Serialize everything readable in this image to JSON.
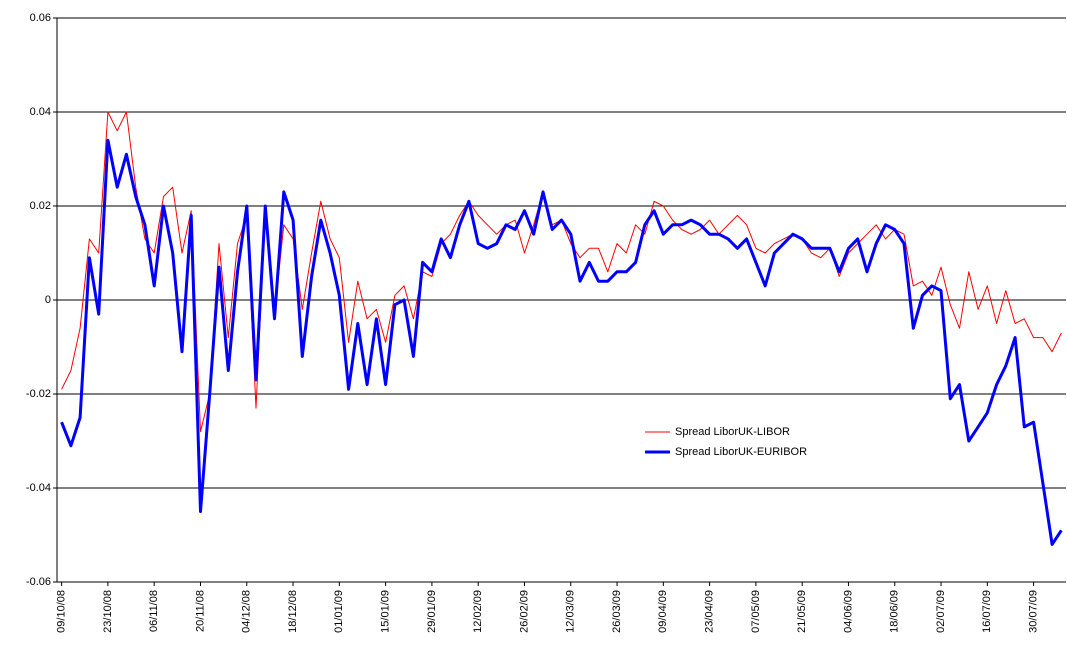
{
  "chart_data": {
    "type": "line",
    "categories": [
      "09/10/08",
      null,
      null,
      null,
      null,
      "23/10/08",
      null,
      null,
      null,
      null,
      "06/11/08",
      null,
      null,
      null,
      null,
      "20/11/08",
      null,
      null,
      null,
      null,
      "04/12/08",
      null,
      null,
      null,
      null,
      "18/12/08",
      null,
      null,
      null,
      null,
      "01/01/09",
      null,
      null,
      null,
      null,
      "15/01/09",
      null,
      null,
      null,
      null,
      "29/01/09",
      null,
      null,
      null,
      null,
      "12/02/09",
      null,
      null,
      null,
      null,
      "26/02/09",
      null,
      null,
      null,
      null,
      "12/03/09",
      null,
      null,
      null,
      null,
      "26/03/09",
      null,
      null,
      null,
      null,
      "09/04/09",
      null,
      null,
      null,
      null,
      "23/04/09",
      null,
      null,
      null,
      null,
      "07/05/09",
      null,
      null,
      null,
      null,
      "21/05/09",
      null,
      null,
      null,
      null,
      "04/06/09",
      null,
      null,
      null,
      null,
      "18/06/09",
      null,
      null,
      null,
      null,
      "02/07/09",
      null,
      null,
      null,
      null,
      "16/07/09",
      null,
      null,
      null,
      null,
      "30/07/09",
      null,
      null,
      null
    ],
    "series": [
      {
        "name": "Spread LiborUK-LIBOR",
        "color": "#ff0000",
        "values": [
          -0.019,
          -0.015,
          -0.006,
          0.013,
          0.01,
          0.04,
          0.036,
          0.04,
          0.024,
          0.013,
          0.01,
          0.022,
          0.024,
          0.01,
          0.019,
          -0.028,
          -0.02,
          0.012,
          -0.008,
          0.012,
          0.018,
          -0.023,
          0.019,
          -0.003,
          0.016,
          0.013,
          -0.002,
          0.01,
          0.021,
          0.013,
          0.009,
          -0.009,
          0.004,
          -0.004,
          -0.002,
          -0.009,
          0.001,
          0.003,
          -0.004,
          0.006,
          0.005,
          0.012,
          0.014,
          0.018,
          0.021,
          0.018,
          0.016,
          0.014,
          0.016,
          0.017,
          0.01,
          0.016,
          0.023,
          0.016,
          0.017,
          0.012,
          0.009,
          0.011,
          0.011,
          0.006,
          0.012,
          0.01,
          0.016,
          0.014,
          0.021,
          0.02,
          0.017,
          0.015,
          0.014,
          0.015,
          0.017,
          0.014,
          0.016,
          0.018,
          0.016,
          0.011,
          0.01,
          0.012,
          0.013,
          0.014,
          0.013,
          0.01,
          0.009,
          0.011,
          0.005,
          0.01,
          0.012,
          0.014,
          0.016,
          0.013,
          0.015,
          0.014,
          0.003,
          0.004,
          0.001,
          0.007,
          -0.001,
          -0.006,
          0.006,
          -0.002,
          0.003,
          -0.005,
          0.002,
          -0.005,
          -0.004,
          -0.008,
          -0.008,
          -0.011,
          -0.007
        ]
      },
      {
        "name": "Spread LiborUK-EURIBOR",
        "color": "#0000ff",
        "values": [
          -0.026,
          -0.031,
          -0.025,
          0.009,
          -0.003,
          0.034,
          0.024,
          0.031,
          0.022,
          0.016,
          0.003,
          0.02,
          0.01,
          -0.011,
          0.018,
          -0.045,
          -0.02,
          0.007,
          -0.015,
          0.006,
          0.02,
          -0.017,
          0.02,
          -0.004,
          0.023,
          0.017,
          -0.012,
          0.005,
          0.017,
          0.01,
          0.001,
          -0.019,
          -0.005,
          -0.018,
          -0.004,
          -0.018,
          -0.001,
          0.0,
          -0.012,
          0.008,
          0.006,
          0.013,
          0.009,
          0.016,
          0.021,
          0.012,
          0.011,
          0.012,
          0.016,
          0.015,
          0.019,
          0.014,
          0.023,
          0.015,
          0.017,
          0.014,
          0.004,
          0.008,
          0.004,
          0.004,
          0.006,
          0.006,
          0.008,
          0.016,
          0.019,
          0.014,
          0.016,
          0.016,
          0.017,
          0.016,
          0.014,
          0.014,
          0.013,
          0.011,
          0.013,
          0.008,
          0.003,
          0.01,
          0.012,
          0.014,
          0.013,
          0.011,
          0.011,
          0.011,
          0.006,
          0.011,
          0.013,
          0.006,
          0.012,
          0.016,
          0.015,
          0.012,
          -0.006,
          0.001,
          0.003,
          0.002,
          -0.021,
          -0.018,
          -0.03,
          -0.027,
          -0.024,
          -0.018,
          -0.014,
          -0.008,
          -0.027,
          -0.026,
          -0.039,
          -0.052,
          -0.049
        ]
      }
    ],
    "ylim": [
      -0.06,
      0.06
    ],
    "yticks": [
      -0.06,
      -0.04,
      -0.02,
      0,
      0.02,
      0.04,
      0.06
    ],
    "grid": true,
    "legend": "right"
  }
}
